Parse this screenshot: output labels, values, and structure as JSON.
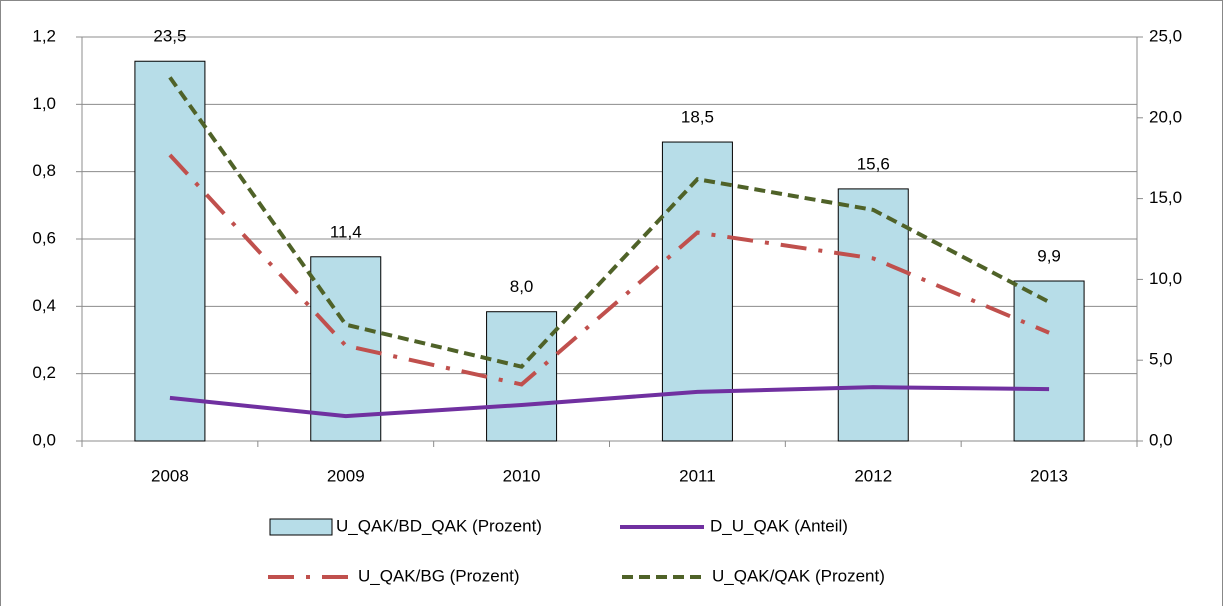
{
  "chart_data": {
    "type": "combo",
    "categories": [
      "2008",
      "2009",
      "2010",
      "2011",
      "2012",
      "2013"
    ],
    "series": [
      {
        "name": "U_QAK/BD_QAK (Prozent)",
        "type": "bar",
        "axis": "y2",
        "color": "#b7dde8",
        "values": [
          23.5,
          11.4,
          8.0,
          18.5,
          15.6,
          9.9
        ],
        "value_labels": [
          "23,5",
          "11,4",
          "8,0",
          "18,5",
          "15,6",
          "9,9"
        ]
      },
      {
        "name": "D_U_QAK (Anteil)",
        "type": "line",
        "color": "#7030a0",
        "style": "solid",
        "values": [
          0.128,
          0.074,
          0.107,
          0.146,
          0.16,
          0.154
        ]
      },
      {
        "name": "U_QAK/BG (Prozent)",
        "type": "line",
        "axis": "y2",
        "color": "#c0504d",
        "style": "dashdot",
        "values": [
          17.7,
          5.9,
          3.5,
          12.9,
          11.3,
          6.7
        ]
      },
      {
        "name": "U_QAK/QAK (Prozent)",
        "type": "line",
        "axis": "y2",
        "color": "#4f6228",
        "style": "dash",
        "values": [
          22.5,
          7.2,
          4.6,
          16.2,
          14.3,
          8.6
        ]
      }
    ],
    "ylim": [
      0,
      1.2
    ],
    "yticks": [
      {
        "value": 0,
        "label": "0,0"
      },
      {
        "value": 0.2,
        "label": "0,2"
      },
      {
        "value": 0.4,
        "label": "0,4"
      },
      {
        "value": 0.6,
        "label": "0,6"
      },
      {
        "value": 0.8,
        "label": "0,8"
      },
      {
        "value": 1.0,
        "label": "1,0"
      },
      {
        "value": 1.2,
        "label": "1,2"
      }
    ],
    "y2lim": [
      0,
      25
    ],
    "y2ticks": [
      {
        "value": 0,
        "label": "0,0"
      },
      {
        "value": 5,
        "label": "5,0"
      },
      {
        "value": 10,
        "label": "10,0"
      },
      {
        "value": 15,
        "label": "15,0"
      },
      {
        "value": 20,
        "label": "20,0"
      },
      {
        "value": 25,
        "label": "25,0"
      }
    ],
    "grid": true
  }
}
